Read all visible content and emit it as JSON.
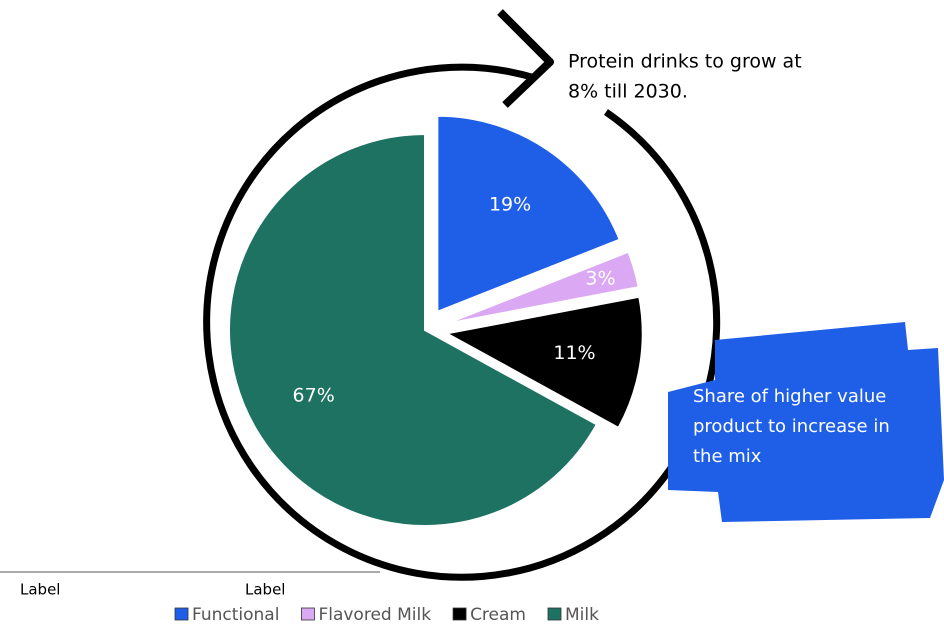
{
  "chart_data": {
    "type": "pie",
    "categories": [
      "Functional",
      "Flavored Milk",
      "Cream",
      "Milk"
    ],
    "values": [
      19,
      3,
      11,
      67
    ],
    "value_labels": [
      "19%",
      "3%",
      "11%",
      "67%"
    ],
    "colors": [
      "#1f5fe8",
      "#dba8f4",
      "#000000",
      "#1d7262"
    ],
    "annotations": [
      [
        "Protein drinks to grow at",
        "8% till 2030."
      ],
      [
        "Share of higher value",
        "product to increase in",
        "the mix"
      ]
    ],
    "footer_labels": [
      "Label",
      "Label"
    ],
    "legend": "bottom"
  }
}
